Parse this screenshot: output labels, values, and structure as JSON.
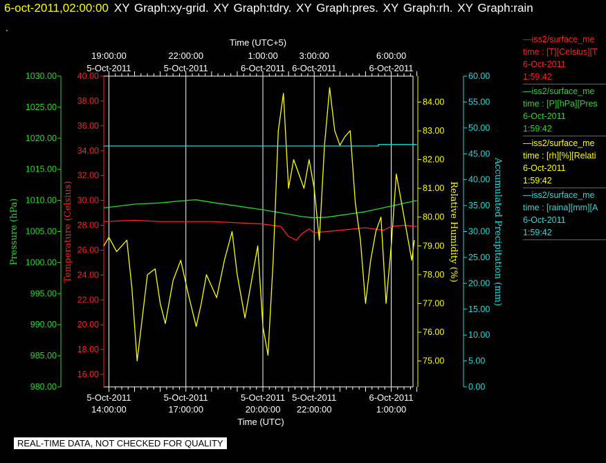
{
  "header": {
    "date_time": "6-oct-2011,02:00:00",
    "graphs": "XY Graph:xy-grid.  XY Graph:tdry.  XY Graph:pres.  XY Graph:rh.  XY Graph:rain",
    "dot": "."
  },
  "legend": [
    {
      "name": "—iss2/surface_me",
      "field": "time : [T][Celsius][T",
      "date": "6-Oct-2011",
      "time": "1:59:42",
      "color": "#ff2020"
    },
    {
      "name": "—iss2/surface_me",
      "field": "time : [P][hPa][Pres",
      "date": "6-Oct-2011",
      "time": "1:59:42",
      "color": "#22dd22"
    },
    {
      "name": "—iss2/surface_me",
      "field": "time : [rh][%][Relati",
      "date": "6-Oct-2011",
      "time": "1:59:42",
      "color": "#ffff00"
    },
    {
      "name": "—iss2/surface_me",
      "field": "time : [raina][mm][A",
      "date": "6-Oct-2011",
      "time": "1:59:42",
      "color": "#22dddd"
    }
  ],
  "notice": "REAL-TIME DATA, NOT CHECKED FOR QUALITY",
  "chart_data": {
    "type": "line",
    "x_unit": "hours since 5-Oct-2011 14:00 UTC",
    "xlim": [
      -0.2,
      12.0
    ],
    "top_axis": {
      "title": "Time (UTC+5)",
      "ticks": [
        {
          "x": 0,
          "time": "19:00:00",
          "date": "5-Oct-2011"
        },
        {
          "x": 3,
          "time": "22:00:00",
          "date": "5-Oct-2011"
        },
        {
          "x": 6,
          "time": "1:00:00",
          "date": "6-Oct-2011"
        },
        {
          "x": 8,
          "time": "3:00:00",
          "date": "6-Oct-2011"
        },
        {
          "x": 11,
          "time": "6:00:00",
          "date": "6-Oct-2011"
        }
      ]
    },
    "bottom_axis": {
      "title": "Time (UTC)",
      "ticks": [
        {
          "x": 0,
          "date": "5-Oct-2011",
          "time": "14:00:00"
        },
        {
          "x": 3,
          "date": "5-Oct-2011",
          "time": "17:00:00"
        },
        {
          "x": 6,
          "date": "5-Oct-2011",
          "time": "20:00:00"
        },
        {
          "x": 8,
          "date": "5-Oct-2011",
          "time": "22:00:00"
        },
        {
          "x": 11,
          "date": "6-Oct-2011",
          "time": "1:00:00"
        }
      ]
    },
    "axes": {
      "pressure": {
        "label": "Pressure (hPa)",
        "color": "#22dd22",
        "min": 980,
        "max": 1030,
        "ticks": [
          "980.00",
          "985.00",
          "990.00",
          "995.00",
          "1000.00",
          "1005.00",
          "1010.00",
          "1015.00",
          "1020.00",
          "1025.00",
          "1030.00"
        ]
      },
      "temperature": {
        "label": "Temperature (Celsius)",
        "color": "#ff2020",
        "min": 15,
        "max": 40,
        "ticks": [
          "16.00",
          "18.00",
          "20.00",
          "22.00",
          "24.00",
          "26.00",
          "28.00",
          "30.00",
          "32.00",
          "34.00",
          "36.00",
          "38.00",
          "40.00"
        ]
      },
      "humidity": {
        "label": "Relative Humidity (%)",
        "color": "#ffff00",
        "min": 74.1,
        "max": 84.9,
        "ticks": [
          "75.00",
          "76.00",
          "77.00",
          "78.00",
          "79.00",
          "80.00",
          "81.00",
          "82.00",
          "83.00",
          "84.00"
        ]
      },
      "precip": {
        "label": "Accumulated Precipitation (mm)",
        "color": "#22dddd",
        "min": 0,
        "max": 60,
        "ticks": [
          "0.00",
          "5.00",
          "10.00",
          "15.00",
          "20.00",
          "25.00",
          "30.00",
          "35.00",
          "40.00",
          "45.00",
          "50.00",
          "55.00",
          "60.00"
        ]
      }
    },
    "series": [
      {
        "name": "Pressure",
        "axis": "pressure",
        "color": "#22dd22",
        "x": [
          -0.2,
          1,
          2,
          3,
          3.4,
          4,
          5,
          6,
          7,
          7.5,
          8,
          8.5,
          9,
          10,
          11,
          12
        ],
        "y": [
          1008.8,
          1009.4,
          1009.6,
          1010.0,
          1010.1,
          1009.7,
          1009.1,
          1008.5,
          1007.8,
          1007.4,
          1007.2,
          1007.3,
          1007.6,
          1008.2,
          1009.1,
          1010.0
        ]
      },
      {
        "name": "Temperature",
        "axis": "temperature",
        "color": "#ff2020",
        "x": [
          -0.2,
          1,
          2,
          3,
          4,
          5,
          6,
          6.7,
          7,
          7.3,
          7.5,
          7.8,
          8,
          9,
          10,
          10.7,
          11,
          11.5,
          12
        ],
        "y": [
          28.3,
          28.4,
          28.3,
          28.3,
          28.3,
          28.2,
          28.1,
          27.9,
          27.1,
          26.8,
          27.3,
          27.7,
          27.4,
          27.6,
          27.8,
          27.6,
          27.9,
          28.0,
          27.9
        ]
      },
      {
        "name": "Relative Humidity",
        "axis": "humidity",
        "color": "#ffff00",
        "x": [
          -0.2,
          0,
          0.3,
          0.7,
          0.9,
          1.1,
          1.3,
          1.5,
          1.8,
          2.0,
          2.2,
          2.5,
          2.8,
          3.1,
          3.4,
          3.6,
          3.8,
          4.2,
          4.5,
          4.8,
          5.0,
          5.3,
          5.5,
          5.8,
          6.0,
          6.2,
          6.4,
          6.6,
          6.8,
          7.0,
          7.2,
          7.4,
          7.6,
          7.8,
          8.0,
          8.2,
          8.4,
          8.6,
          8.8,
          9.0,
          9.2,
          9.4,
          9.6,
          9.8,
          10.0,
          10.2,
          10.4,
          10.6,
          10.8,
          11.0,
          11.2,
          11.4,
          11.6,
          11.8,
          11.9
        ],
        "y": [
          79.0,
          79.3,
          78.8,
          79.2,
          77.5,
          75.0,
          76.5,
          78.0,
          78.2,
          77.0,
          76.3,
          77.8,
          78.5,
          77.3,
          76.2,
          77.0,
          78.0,
          77.2,
          78.5,
          79.5,
          78.0,
          76.5,
          77.5,
          79.0,
          76.2,
          75.2,
          78.5,
          83.0,
          84.3,
          81.0,
          82.0,
          81.5,
          81.0,
          82.0,
          81.0,
          79.2,
          82.5,
          84.5,
          83.0,
          82.5,
          82.8,
          83.0,
          80.5,
          79.2,
          77.0,
          78.5,
          79.5,
          80.0,
          77.0,
          79.0,
          81.5,
          80.5,
          79.5,
          78.5,
          79.2
        ]
      },
      {
        "name": "Accumulated Precipitation",
        "axis": "precip",
        "color": "#22dddd",
        "x": [
          -0.2,
          10.5,
          10.5,
          12.0
        ],
        "y": [
          46.5,
          46.5,
          46.8,
          46.8
        ]
      }
    ]
  }
}
